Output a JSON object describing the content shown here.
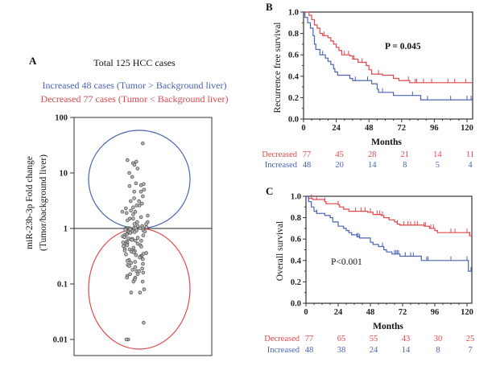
{
  "colors": {
    "decreased": "#e0484c",
    "increased": "#4a63b2",
    "axis": "#333333",
    "points": "#555555"
  },
  "chart_data": [
    {
      "panel": "A",
      "type": "scatter",
      "title": "Total 125 HCC cases",
      "subtitle_increased": "Increased 48 cases (Tumor > Background liver)",
      "subtitle_decreased": "Decreased 77 cases (Tumor < Background liver)",
      "ylabel_line1": "miR-23b-3p Fold change",
      "ylabel_line2": "(Tumor/background liver)",
      "yscale": "log",
      "ylim": [
        0.005,
        100
      ],
      "yticks": [
        "100",
        "10",
        "1",
        "0.1",
        "0.01"
      ],
      "reference_line": 1,
      "series": [
        {
          "name": "Increased",
          "values": [
            34,
            17,
            16,
            15,
            14,
            12,
            10,
            8.5,
            6.5,
            6.3,
            6,
            5.8,
            5,
            4.6,
            4.6,
            3.8,
            3.5,
            3.1,
            3.1,
            2.8,
            2.6,
            2.6,
            2.4,
            2.3,
            2.1,
            2,
            2,
            1.9,
            1.8,
            1.7,
            1.6,
            1.5,
            1.5,
            1.4,
            1.3,
            1.3,
            1.2,
            1.2,
            1.1,
            1.1,
            1.05,
            1.02,
            1.01,
            1.01,
            1.01,
            1.01,
            1.01,
            1.01
          ]
        },
        {
          "name": "Decreased",
          "values": [
            0.98,
            0.97,
            0.95,
            0.93,
            0.92,
            0.9,
            0.88,
            0.86,
            0.85,
            0.83,
            0.8,
            0.78,
            0.76,
            0.75,
            0.72,
            0.7,
            0.7,
            0.68,
            0.66,
            0.65,
            0.63,
            0.62,
            0.6,
            0.58,
            0.56,
            0.55,
            0.53,
            0.52,
            0.5,
            0.5,
            0.48,
            0.47,
            0.45,
            0.43,
            0.42,
            0.4,
            0.4,
            0.39,
            0.38,
            0.37,
            0.36,
            0.35,
            0.34,
            0.33,
            0.32,
            0.31,
            0.3,
            0.28,
            0.27,
            0.26,
            0.25,
            0.24,
            0.23,
            0.22,
            0.21,
            0.2,
            0.19,
            0.18,
            0.17,
            0.17,
            0.16,
            0.15,
            0.15,
            0.14,
            0.13,
            0.13,
            0.12,
            0.12,
            0.11,
            0.11,
            0.08,
            0.07,
            0.07,
            0.02,
            0.01,
            0.01,
            0.6
          ]
        }
      ]
    },
    {
      "panel": "B",
      "type": "line",
      "ylabel": "Recurrence free survival",
      "xlabel": "Months",
      "xlim": [
        0,
        124
      ],
      "ylim": [
        0,
        1
      ],
      "xticks": [
        "0",
        "24",
        "48",
        "72",
        "96",
        "120"
      ],
      "yticks": [
        "0.0",
        "0.2",
        "0.4",
        "0.6",
        "0.8",
        "1.0"
      ],
      "annotation": "P = 0.045",
      "series": [
        {
          "name": "Decreased",
          "steps": [
            [
              0,
              1
            ],
            [
              4,
              0.97
            ],
            [
              6,
              0.93
            ],
            [
              8,
              0.88
            ],
            [
              10,
              0.85
            ],
            [
              12,
              0.8
            ],
            [
              14,
              0.78
            ],
            [
              18,
              0.76
            ],
            [
              20,
              0.73
            ],
            [
              22,
              0.7
            ],
            [
              24,
              0.67
            ],
            [
              26,
              0.64
            ],
            [
              28,
              0.6
            ],
            [
              34,
              0.59
            ],
            [
              36,
              0.56
            ],
            [
              40,
              0.53
            ],
            [
              46,
              0.5
            ],
            [
              48,
              0.46
            ],
            [
              50,
              0.42
            ],
            [
              58,
              0.41
            ],
            [
              66,
              0.38
            ],
            [
              70,
              0.36
            ],
            [
              78,
              0.34
            ]
          ],
          "censored": [
            15,
            30,
            33,
            37,
            43,
            46,
            55,
            77,
            82,
            83,
            88,
            94,
            106,
            111,
            119
          ],
          "at_risk": [
            77,
            45,
            28,
            21,
            14,
            11
          ]
        },
        {
          "name": "Increased",
          "steps": [
            [
              0,
              1
            ],
            [
              1,
              0.95
            ],
            [
              3,
              0.9
            ],
            [
              5,
              0.85
            ],
            [
              7,
              0.78
            ],
            [
              8,
              0.7
            ],
            [
              9,
              0.65
            ],
            [
              12,
              0.6
            ],
            [
              16,
              0.57
            ],
            [
              18,
              0.54
            ],
            [
              20,
              0.51
            ],
            [
              22,
              0.47
            ],
            [
              23,
              0.44
            ],
            [
              25,
              0.41
            ],
            [
              34,
              0.38
            ],
            [
              36,
              0.36
            ],
            [
              50,
              0.33
            ],
            [
              54,
              0.28
            ],
            [
              55,
              0.25
            ],
            [
              66,
              0.22
            ],
            [
              86,
              0.18
            ]
          ],
          "censored": [
            14,
            38,
            47,
            58,
            80,
            91,
            108,
            120,
            123
          ],
          "at_risk": [
            48,
            20,
            14,
            8,
            5,
            4
          ]
        }
      ]
    },
    {
      "panel": "C",
      "type": "line",
      "ylabel": "Overall survival",
      "xlabel": "Months",
      "xlim": [
        0,
        124
      ],
      "ylim": [
        0,
        1
      ],
      "xticks": [
        "0",
        "24",
        "48",
        "72",
        "96",
        "120"
      ],
      "yticks": [
        "0.0",
        "0.2",
        "0.4",
        "0.6",
        "0.8",
        "1.0"
      ],
      "annotation": "P<0.001",
      "series": [
        {
          "name": "Decreased",
          "steps": [
            [
              0,
              1
            ],
            [
              2,
              0.98
            ],
            [
              5,
              0.97
            ],
            [
              14,
              0.95
            ],
            [
              15,
              0.93
            ],
            [
              24,
              0.92
            ],
            [
              25,
              0.9
            ],
            [
              28,
              0.88
            ],
            [
              32,
              0.86
            ],
            [
              46,
              0.85
            ],
            [
              50,
              0.83
            ],
            [
              56,
              0.82
            ],
            [
              58,
              0.8
            ],
            [
              62,
              0.78
            ],
            [
              66,
              0.76
            ],
            [
              68,
              0.74
            ],
            [
              70,
              0.73
            ],
            [
              88,
              0.72
            ],
            [
              92,
              0.7
            ],
            [
              96,
              0.68
            ],
            [
              98,
              0.66
            ],
            [
              122,
              0.63
            ]
          ],
          "censored": [
            4,
            8,
            14,
            24,
            37,
            41,
            44,
            48,
            53,
            55,
            57,
            68,
            73,
            76,
            78,
            81,
            83,
            88,
            89,
            93,
            95,
            108,
            111,
            120,
            122
          ],
          "at_risk": [
            77,
            65,
            55,
            43,
            30,
            25
          ]
        },
        {
          "name": "Increased",
          "steps": [
            [
              0,
              1
            ],
            [
              2,
              0.95
            ],
            [
              4,
              0.9
            ],
            [
              6,
              0.86
            ],
            [
              8,
              0.84
            ],
            [
              14,
              0.82
            ],
            [
              18,
              0.8
            ],
            [
              20,
              0.76
            ],
            [
              24,
              0.72
            ],
            [
              28,
              0.7
            ],
            [
              30,
              0.68
            ],
            [
              32,
              0.66
            ],
            [
              34,
              0.64
            ],
            [
              38,
              0.62
            ],
            [
              40,
              0.61
            ],
            [
              48,
              0.57
            ],
            [
              50,
              0.55
            ],
            [
              54,
              0.53
            ],
            [
              58,
              0.5
            ],
            [
              60,
              0.48
            ],
            [
              64,
              0.46
            ],
            [
              70,
              0.44
            ],
            [
              86,
              0.4
            ],
            [
              121,
              0.3
            ]
          ],
          "censored": [
            8,
            38,
            39,
            40,
            48,
            57,
            66,
            67,
            68,
            69,
            74,
            78,
            80,
            90,
            91,
            108,
            120,
            123
          ],
          "at_risk": [
            48,
            38,
            24,
            14,
            8,
            7
          ]
        }
      ]
    }
  ]
}
